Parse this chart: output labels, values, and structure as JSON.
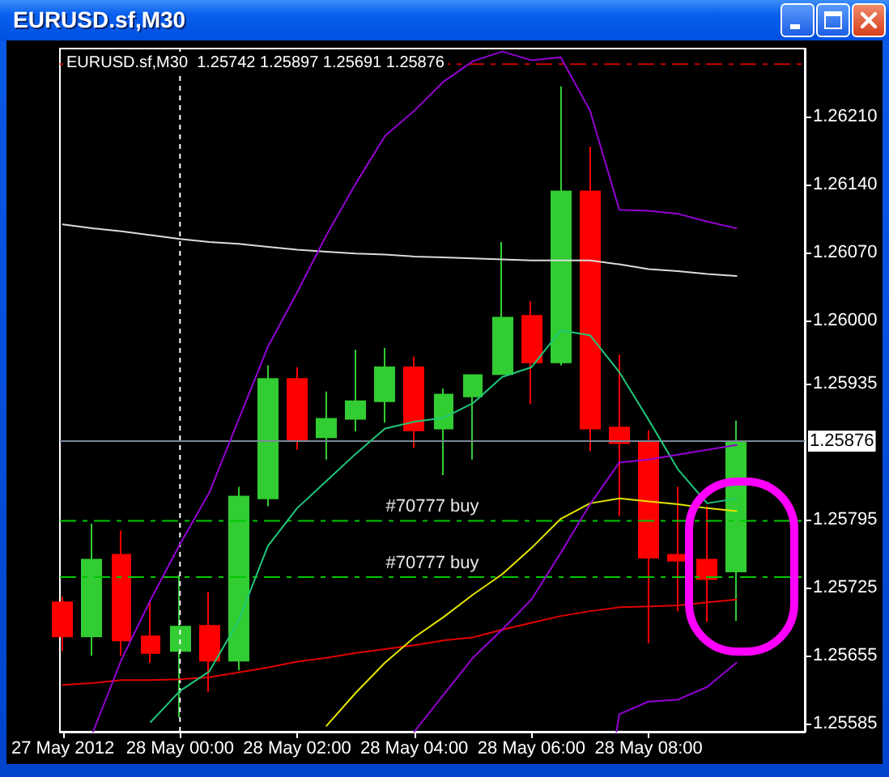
{
  "chart_data": {
    "type": "candlestick",
    "title": "EURUSD.sf,M30",
    "subtitle": "EURUSD.sf,M30  1.25742 1.25897 1.25691 1.25876",
    "x": [
      "2012-05-27T22:00",
      "2012-05-27T22:30",
      "2012-05-27T23:00",
      "2012-05-27T23:30",
      "2012-05-28T00:00",
      "2012-05-28T00:30",
      "2012-05-28T01:00",
      "2012-05-28T01:30",
      "2012-05-28T02:00",
      "2012-05-28T02:30",
      "2012-05-28T03:00",
      "2012-05-28T03:30",
      "2012-05-28T04:00",
      "2012-05-28T04:30",
      "2012-05-28T05:00",
      "2012-05-28T05:30",
      "2012-05-28T06:00",
      "2012-05-28T06:30",
      "2012-05-28T07:00",
      "2012-05-28T07:30",
      "2012-05-28T08:00",
      "2012-05-28T08:30",
      "2012-05-28T09:00",
      "2012-05-28T09:30"
    ],
    "ohlc": [
      [
        1.2571,
        1.25716,
        1.2566,
        1.25675
      ],
      [
        1.25675,
        1.25791,
        1.25655,
        1.25754
      ],
      [
        1.25759,
        1.25784,
        1.25655,
        1.25671
      ],
      [
        1.25675,
        1.2571,
        1.25648,
        1.25658
      ],
      [
        1.2566,
        1.25738,
        1.25592,
        1.25685
      ],
      [
        1.25686,
        1.25721,
        1.25618,
        1.2565
      ],
      [
        1.2565,
        1.25829,
        1.2564,
        1.25819
      ],
      [
        1.25817,
        1.25954,
        1.25809,
        1.2594
      ],
      [
        1.2594,
        1.25952,
        1.25867,
        1.25876
      ],
      [
        1.2588,
        1.25927,
        1.25857,
        1.25899
      ],
      [
        1.25899,
        1.2597,
        1.25886,
        1.25917
      ],
      [
        1.25917,
        1.25972,
        1.25895,
        1.25952
      ],
      [
        1.25952,
        1.25963,
        1.25869,
        1.25887
      ],
      [
        1.25889,
        1.2593,
        1.25841,
        1.25924
      ],
      [
        1.25922,
        1.25945,
        1.25857,
        1.25944
      ],
      [
        1.25945,
        1.26081,
        1.25945,
        1.26003
      ],
      [
        1.26005,
        1.2602,
        1.25914,
        1.25957
      ],
      [
        1.25957,
        1.26241,
        1.25954,
        1.26133
      ],
      [
        1.26133,
        1.26179,
        1.25866,
        1.25889
      ],
      [
        1.2589,
        1.25965,
        1.25799,
        1.25874
      ],
      [
        1.25876,
        1.25887,
        1.25668,
        1.25756
      ],
      [
        1.25759,
        1.25829,
        1.25701,
        1.25753
      ],
      [
        1.25754,
        1.25809,
        1.2569,
        1.25734
      ],
      [
        1.25742,
        1.25897,
        1.25691,
        1.25876
      ]
    ],
    "colors": [
      "#ff0000",
      "#32cd32",
      "#ff0000",
      "#ff0000",
      "#32cd32",
      "#ff0000",
      "#32cd32",
      "#32cd32",
      "#ff0000",
      "#32cd32",
      "#32cd32",
      "#32cd32",
      "#ff0000",
      "#32cd32",
      "#32cd32",
      "#32cd32",
      "#ff0000",
      "#32cd32",
      "#ff0000",
      "#ff0000",
      "#ff0000",
      "#ff0000",
      "#ff0000",
      "#32cd32"
    ],
    "series": [
      {
        "type": "line",
        "color": "#dcdcdc",
        "values": [
          1.26099,
          1.26095,
          1.26092,
          1.26088,
          1.26084,
          1.26081,
          1.26079,
          1.26076,
          1.26073,
          1.26071,
          1.26069,
          1.26068,
          1.26066,
          1.26065,
          1.26064,
          1.26063,
          1.26062,
          1.26062,
          1.26062,
          1.26058,
          1.26053,
          1.26051,
          1.26048,
          1.26046
        ]
      },
      {
        "type": "line",
        "color": "#e00000",
        "values": [
          1.25625,
          1.25627,
          1.2563,
          1.2563,
          1.25631,
          1.25633,
          1.25638,
          1.25643,
          1.25649,
          1.25653,
          1.25658,
          1.25662,
          1.25666,
          1.25671,
          1.25674,
          1.25682,
          1.25689,
          1.25696,
          1.25701,
          1.25705,
          1.25706,
          1.25707,
          1.2571,
          1.25713
        ]
      },
      {
        "type": "line",
        "color": "#1fc87a",
        "x": [
          "2012-05-27T23:30",
          "2012-05-28T00:00",
          "2012-05-28T00:30",
          "2012-05-28T01:00",
          "2012-05-28T01:30",
          "2012-05-28T02:00",
          "2012-05-28T02:30",
          "2012-05-28T03:00",
          "2012-05-28T03:30",
          "2012-05-28T04:00",
          "2012-05-28T04:30",
          "2012-05-28T05:00",
          "2012-05-28T05:30",
          "2012-05-28T06:00",
          "2012-05-28T06:30",
          "2012-05-28T07:00",
          "2012-05-28T07:30",
          "2012-05-28T08:00",
          "2012-05-28T08:30",
          "2012-05-28T09:00",
          "2012-05-28T09:30"
        ],
        "values": [
          1.25587,
          1.25619,
          1.25639,
          1.25691,
          1.25768,
          1.25807,
          1.25835,
          1.25863,
          1.25889,
          1.25896,
          1.259,
          1.25915,
          1.25942,
          1.25952,
          1.2599,
          1.25985,
          1.25947,
          1.25898,
          1.25847,
          1.25812,
          1.25817
        ]
      },
      {
        "type": "line",
        "color": "#e6e600",
        "x": [
          "2012-05-28T02:30",
          "2012-05-28T03:00",
          "2012-05-28T03:30",
          "2012-05-28T04:00",
          "2012-05-28T04:30",
          "2012-05-28T05:00",
          "2012-05-28T05:30",
          "2012-05-28T06:00",
          "2012-05-28T06:30",
          "2012-05-28T07:00",
          "2012-05-28T07:30",
          "2012-05-28T08:00",
          "2012-05-28T08:30",
          "2012-05-28T09:00",
          "2012-05-28T09:30"
        ],
        "values": [
          1.25583,
          1.25617,
          1.25648,
          1.25674,
          1.25695,
          1.25718,
          1.25739,
          1.25766,
          1.25796,
          1.25812,
          1.25817,
          1.25814,
          1.25811,
          1.25807,
          1.25804
        ]
      },
      {
        "type": "line",
        "color": "#9400d3",
        "x": [
          "2012-05-27T22:31",
          "2012-05-27T23:00",
          "2012-05-27T23:30",
          "2012-05-28T00:00",
          "2012-05-28T00:30",
          "2012-05-28T01:00",
          "2012-05-28T01:30",
          "2012-05-28T02:00",
          "2012-05-28T02:30",
          "2012-05-28T03:00",
          "2012-05-28T03:30",
          "2012-05-28T04:00",
          "2012-05-28T04:30",
          "2012-05-28T05:00",
          "2012-05-28T05:30",
          "2012-05-28T06:00",
          "2012-05-28T06:30",
          "2012-05-28T07:00",
          "2012-05-28T07:30",
          "2012-05-28T08:00",
          "2012-05-28T08:30",
          "2012-05-28T09:00",
          "2012-05-28T09:30"
        ],
        "values": [
          1.25577,
          1.25651,
          1.25713,
          1.2577,
          1.25823,
          1.25898,
          1.25973,
          1.26029,
          1.26088,
          1.26141,
          1.2619,
          1.26216,
          1.26246,
          1.26267,
          1.26277,
          1.26268,
          1.26271,
          1.26216,
          1.26114,
          1.26113,
          1.2611,
          1.26102,
          1.26095
        ]
      },
      {
        "type": "line",
        "color": "#9400d3",
        "x": [
          "2012-05-28T04:00",
          "2012-05-28T04:30",
          "2012-05-28T05:00",
          "2012-05-28T05:30",
          "2012-05-28T06:00",
          "2012-05-28T06:30",
          "2012-05-28T07:00",
          "2012-05-28T07:30",
          "2012-05-28T08:00",
          "2012-05-28T08:30",
          "2012-05-28T09:00",
          "2012-05-28T09:30"
        ],
        "values": [
          1.25577,
          1.25615,
          1.25653,
          1.25682,
          1.25713,
          1.25761,
          1.25811,
          1.25854,
          1.25857,
          1.25862,
          1.25867,
          1.25872
        ]
      },
      {
        "type": "line",
        "color": "#9400d3",
        "x": [
          "2012-05-28T07:27",
          "2012-05-28T07:30",
          "2012-05-28T08:00",
          "2012-05-28T08:30",
          "2012-05-28T09:00",
          "2012-05-28T09:30"
        ],
        "values": [
          1.25577,
          1.25595,
          1.25608,
          1.2561,
          1.25623,
          1.25648
        ]
      }
    ],
    "marker": "none",
    "xlim": [
      "2012-05-27T21:57",
      "2012-05-28T10:40"
    ],
    "xticks": [
      {
        "value": "2012-05-27T22:00",
        "label": "27 May 2012"
      },
      {
        "value": "2012-05-28T00:00",
        "label": "28 May 00:00"
      },
      {
        "value": "2012-05-28T02:00",
        "label": "28 May 02:00"
      },
      {
        "value": "2012-05-28T04:00",
        "label": "28 May 04:00"
      },
      {
        "value": "2012-05-28T06:00",
        "label": "28 May 06:00"
      },
      {
        "value": "2012-05-28T08:00",
        "label": "28 May 08:00"
      }
    ],
    "ylim": [
      1.25577,
      1.2628
    ],
    "yticks": [
      1.25585,
      1.25655,
      1.25725,
      1.25795,
      1.25935,
      {
        "value": 1.26,
        "label": "1.26000"
      },
      {
        "value": 1.2607,
        "label": "1.26070"
      },
      {
        "value": 1.2614,
        "label": "1.26140"
      },
      {
        "value": 1.2621,
        "label": "1.26210"
      }
    ],
    "ref_lines": [
      {
        "axis": "y",
        "value": 1.26264,
        "color": "#cc0000",
        "line_style": "dashed"
      },
      {
        "axis": "y",
        "value": 1.25876,
        "label": "1.25876",
        "color": "#778899",
        "line_style": "solid"
      },
      {
        "axis": "y",
        "value": 1.25794,
        "label": "#70777 buy",
        "color": "#00c800",
        "line_style": "dashed"
      },
      {
        "axis": "y",
        "value": 1.25736,
        "label": "#70777 buy",
        "color": "#00c800",
        "line_style": "dashed"
      },
      {
        "axis": "x",
        "value": "2012-05-28T00:00",
        "color": "#ffffff",
        "line_style": "dotted"
      }
    ]
  }
}
